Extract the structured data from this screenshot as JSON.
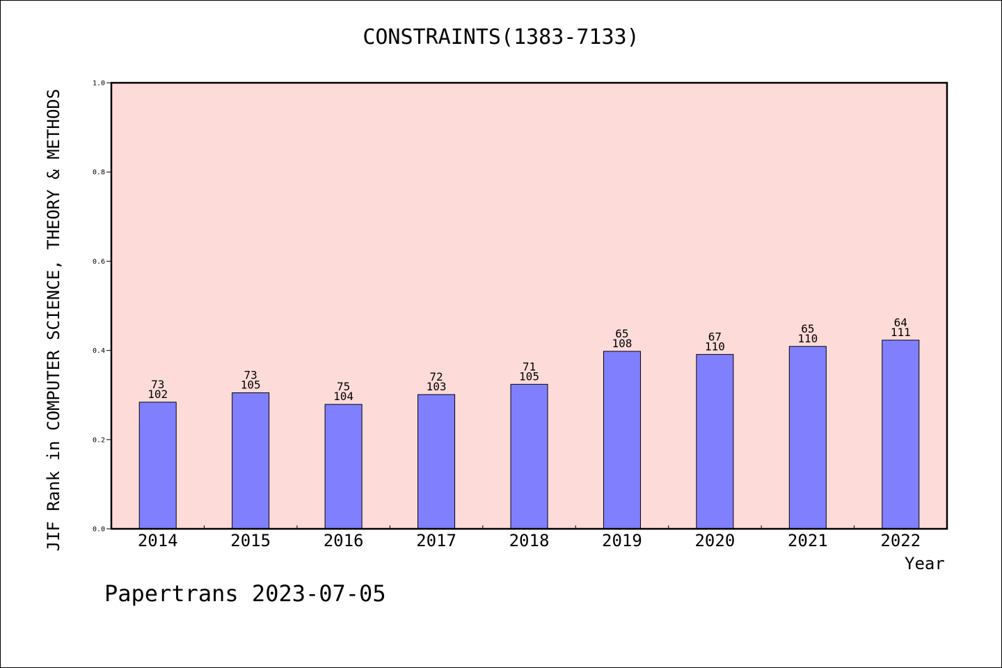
{
  "chart_data": {
    "type": "bar",
    "title": "CONSTRAINTS(1383-7133)",
    "ylabel": "JIF Rank in COMPUTER SCIENCE, THEORY & METHODS",
    "xlabel": "Year",
    "categories": [
      "2014",
      "2015",
      "2016",
      "2017",
      "2018",
      "2019",
      "2020",
      "2021",
      "2022"
    ],
    "values": [
      0.284,
      0.305,
      0.279,
      0.301,
      0.324,
      0.398,
      0.391,
      0.409,
      0.423
    ],
    "rank": [
      73,
      73,
      75,
      72,
      71,
      65,
      67,
      65,
      64
    ],
    "total": [
      102,
      105,
      104,
      103,
      105,
      108,
      110,
      110,
      111
    ],
    "ylim": [
      0,
      1.0
    ],
    "yticks": [
      "0.0",
      "0.2",
      "0.4",
      "0.6",
      "0.8",
      "1.0"
    ],
    "colors": {
      "plot_bg": "#fddbd8",
      "bar": "#8080ff",
      "bar_edge": "#000000"
    }
  },
  "footer": "Papertrans 2023-07-05"
}
